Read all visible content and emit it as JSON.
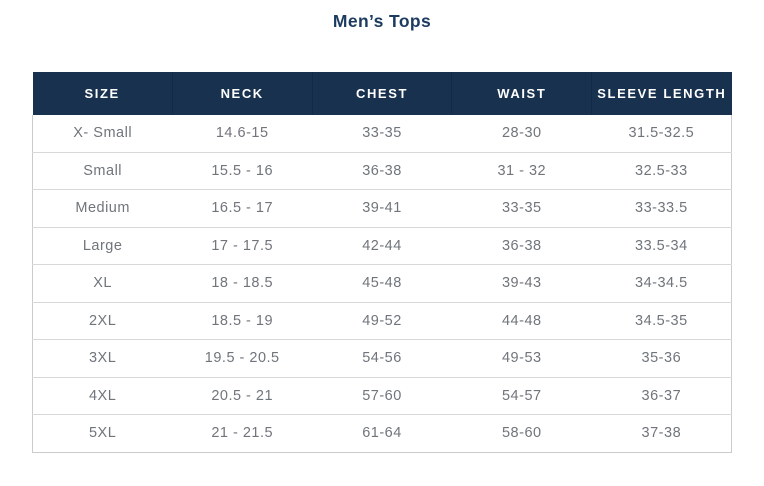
{
  "page": {
    "title": "Men’s Tops"
  },
  "colors": {
    "header_background": "#17314E",
    "title_text": "#1C3B5F",
    "body_text": "#70757B",
    "row_divider": "#D8D8D8",
    "outer_border": "#C9CBCD",
    "page_background": "#FFFFFF"
  },
  "table": {
    "headers": [
      "SIZE",
      "NECK",
      "CHEST",
      "WAIST",
      "SLEEVE LENGTH"
    ],
    "rows": [
      [
        "X- Small",
        "14.6-15",
        "33-35",
        "28-30",
        "31.5-32.5"
      ],
      [
        "Small",
        "15.5 - 16",
        "36-38",
        "31 - 32",
        "32.5-33"
      ],
      [
        "Medium",
        "16.5 - 17",
        "39-41",
        "33-35",
        "33-33.5"
      ],
      [
        "Large",
        "17 - 17.5",
        "42-44",
        "36-38",
        "33.5-34"
      ],
      [
        "XL",
        "18 - 18.5",
        "45-48",
        "39-43",
        "34-34.5"
      ],
      [
        "2XL",
        "18.5 - 19",
        "49-52",
        "44-48",
        "34.5-35"
      ],
      [
        "3XL",
        "19.5 - 20.5",
        "54-56",
        "49-53",
        "35-36"
      ],
      [
        "4XL",
        "20.5 - 21",
        "57-60",
        "54-57",
        "36-37"
      ],
      [
        "5XL",
        "21 - 21.5",
        "61-64",
        "58-60",
        "37-38"
      ]
    ]
  }
}
